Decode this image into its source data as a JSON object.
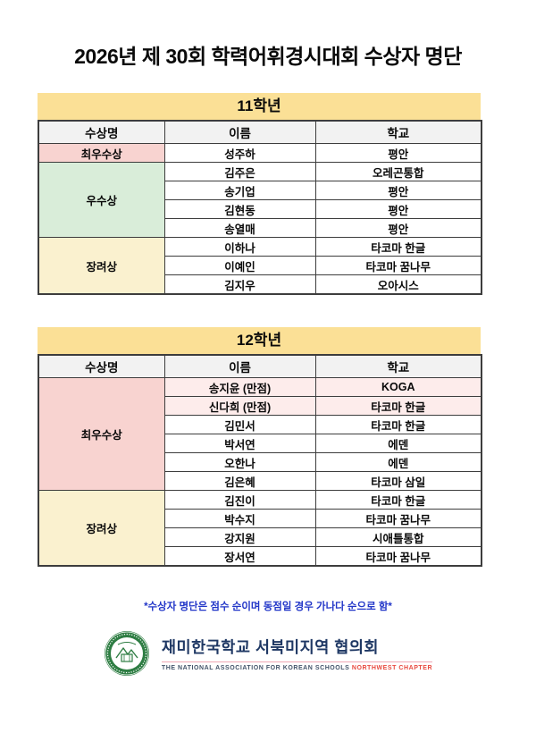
{
  "page": {
    "title": "2026년 제 30회 학력어휘경시대회 수상자 명단",
    "note": "*수상자 명단은 점수 순이며 동점일 경우 가나다 순으로 함*"
  },
  "columns": {
    "award": "수상명",
    "name": "이름",
    "school": "학교"
  },
  "tables": [
    {
      "grade": "11학년",
      "groups": [
        {
          "award": "최우수상",
          "color": "pink",
          "rows": [
            {
              "name": "성주하",
              "school": "평안"
            }
          ]
        },
        {
          "award": "우수상",
          "color": "green",
          "rows": [
            {
              "name": "김주은",
              "school": "오레곤통합"
            },
            {
              "name": "송기업",
              "school": "평안"
            },
            {
              "name": "김현동",
              "school": "평안"
            },
            {
              "name": "송열매",
              "school": "평안"
            }
          ]
        },
        {
          "award": "장려상",
          "color": "cream",
          "rows": [
            {
              "name": "이하나",
              "school": "타코마 한글"
            },
            {
              "name": "이예인",
              "school": "타코마 꿈나무"
            },
            {
              "name": "김지우",
              "school": "오아시스"
            }
          ]
        }
      ]
    },
    {
      "grade": "12학년",
      "groups": [
        {
          "award": "최우수상",
          "color": "pink",
          "rows": [
            {
              "name": "송지윤  (만점)",
              "school": "KOGA",
              "highlight": true
            },
            {
              "name": "신다희  (만점)",
              "school": "타코마 한글",
              "highlight": true
            },
            {
              "name": "김민서",
              "school": "타코마 한글"
            },
            {
              "name": "박서연",
              "school": "에덴"
            },
            {
              "name": "오한나",
              "school": "에덴"
            },
            {
              "name": "김은혜",
              "school": "타코마 삼일"
            }
          ]
        },
        {
          "award": "장려상",
          "color": "cream",
          "rows": [
            {
              "name": "김진이",
              "school": "타코마 한글"
            },
            {
              "name": "박수지",
              "school": "타코마 꿈나무"
            },
            {
              "name": "강지원",
              "school": "시애틀통합"
            },
            {
              "name": "장서연",
              "school": "타코마 꿈나무"
            }
          ]
        }
      ]
    }
  ],
  "footer": {
    "org_kr": "재미한국학교 서북미지역 협의회",
    "org_en_main": "THE NATIONAL ASSOCIATION FOR KOREAN SCHOOLS",
    "org_en_accent": "NORTHWEST CHAPTER",
    "seal_icon": "korean-school-association-seal"
  },
  "palette": {
    "grade_band_yellow": "#fbe096",
    "column_header_gray": "#f2f2f2",
    "top_award_pink": "#f8d3d0",
    "perfect_score_light_pink": "#fdeceb",
    "excellence_green": "#d9edd9",
    "encouragement_cream": "#faf1cf",
    "table_border": "#3d3d3d",
    "note_blue": "#2236c8",
    "org_navy": "#1f3864",
    "accent_red": "#e8493f",
    "seal_green": "#2e7d43"
  }
}
